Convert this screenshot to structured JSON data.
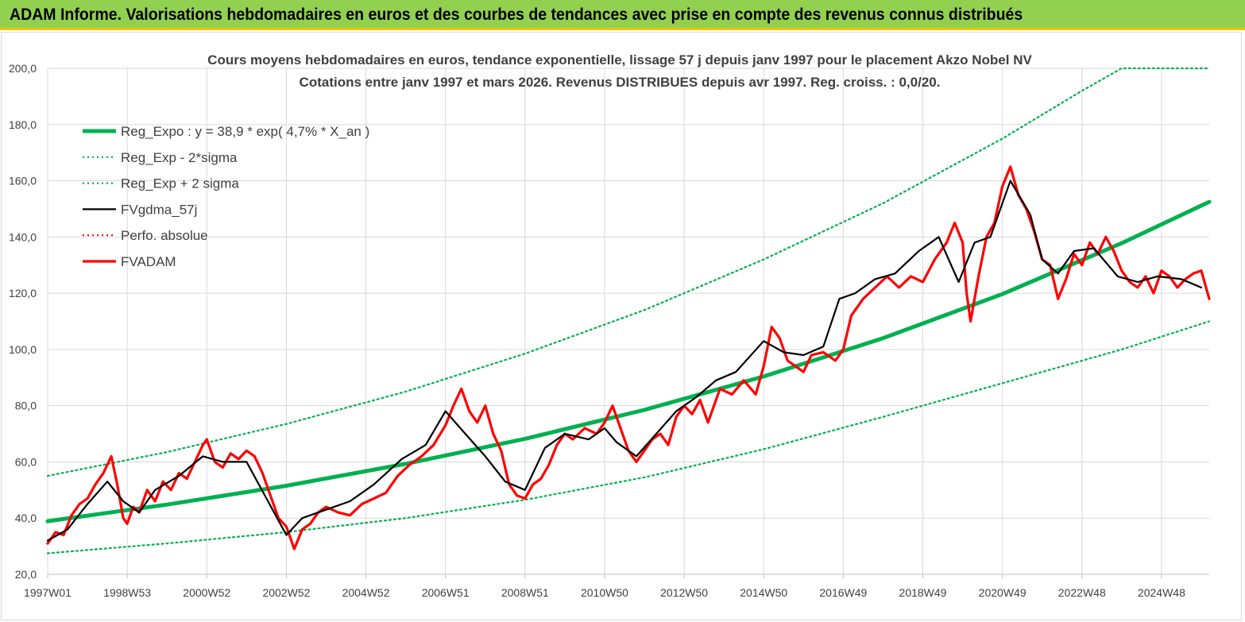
{
  "header": {
    "title": "ADAM Informe. Valorisations hebdomadaires en euros et des courbes de tendances avec prise en compte des revenus connus distribués"
  },
  "chart_data": {
    "type": "line",
    "title": "Cours moyens hebdomadaires en euros, tendance exponentielle, lissage 57 j depuis janv 1997 pour le placement Akzo Nobel NV",
    "subtitle": "Cotations entre janv 1997 et mars 2026. Revenus DISTRIBUES depuis avr 1997. Reg. croiss. : 0,0/20.",
    "xlabel": "",
    "ylabel": "",
    "x_range": [
      1997.0,
      2026.2
    ],
    "ylim": [
      20,
      200
    ],
    "y_ticks": [
      "20,0",
      "40,0",
      "60,0",
      "80,0",
      "100,0",
      "120,0",
      "140,0",
      "160,0",
      "180,0",
      "200,0"
    ],
    "x_ticks": [
      {
        "label": "1997W01",
        "t": 1997.0
      },
      {
        "label": "1998W53",
        "t": 1999.0
      },
      {
        "label": "2000W52",
        "t": 2001.0
      },
      {
        "label": "2002W52",
        "t": 2003.0
      },
      {
        "label": "2004W52",
        "t": 2005.0
      },
      {
        "label": "2006W51",
        "t": 2007.0
      },
      {
        "label": "2008W51",
        "t": 2009.0
      },
      {
        "label": "2010W50",
        "t": 2011.0
      },
      {
        "label": "2012W50",
        "t": 2013.0
      },
      {
        "label": "2014W50",
        "t": 2015.0
      },
      {
        "label": "2016W49",
        "t": 2017.0
      },
      {
        "label": "2018W49",
        "t": 2019.0
      },
      {
        "label": "2020W49",
        "t": 2021.0
      },
      {
        "label": "2022W48",
        "t": 2023.0
      },
      {
        "label": "2024W48",
        "t": 2025.0
      }
    ],
    "grid": true,
    "legend_position": "top-left",
    "series": [
      {
        "name": "Reg_Expo : y = 38,9 * exp( 4,7% *  X_an )",
        "color": "#00b050",
        "style": "solid-thick",
        "role": "trend",
        "x": [
          1997.0,
          2000.0,
          2003.0,
          2006.0,
          2009.0,
          2012.0,
          2015.0,
          2018.0,
          2021.0,
          2024.0,
          2026.2
        ],
        "values": [
          38.9,
          44.8,
          51.5,
          59.3,
          68.2,
          78.5,
          90.4,
          104.0,
          119.7,
          137.8,
          152.5
        ]
      },
      {
        "name": "Reg_Exp - 2*sigma",
        "color": "#00b050",
        "style": "dotted",
        "role": "lower",
        "x": [
          1997.0,
          2000.0,
          2003.0,
          2006.0,
          2009.0,
          2012.0,
          2015.0,
          2018.0,
          2021.0,
          2024.0,
          2026.2
        ],
        "values": [
          27.5,
          31.0,
          35.0,
          40.0,
          46.5,
          54.5,
          64.5,
          76.0,
          88.0,
          100.0,
          110.0
        ]
      },
      {
        "name": "Reg_Exp + 2 sigma",
        "color": "#00b050",
        "style": "dotted",
        "role": "upper",
        "x": [
          1997.0,
          2000.0,
          2003.0,
          2006.0,
          2009.0,
          2012.0,
          2015.0,
          2018.0,
          2021.0,
          2023.0,
          2024.0,
          2026.2
        ],
        "values": [
          55.0,
          63.5,
          73.5,
          85.0,
          98.5,
          114.0,
          132.0,
          152.0,
          175.0,
          192.0,
          200.0,
          200.0
        ]
      },
      {
        "name": "FVgdma_57j",
        "color": "#000000",
        "style": "solid",
        "role": "smooth",
        "x": [
          1997.0,
          1997.5,
          1998.0,
          1998.5,
          1998.9,
          1999.3,
          1999.7,
          2000.3,
          2000.9,
          2001.4,
          2002.0,
          2002.5,
          2003.0,
          2003.4,
          2004.0,
          2004.6,
          2005.2,
          2005.9,
          2006.5,
          2007.0,
          2007.5,
          2008.0,
          2008.5,
          2009.0,
          2009.5,
          2010.0,
          2010.6,
          2011.0,
          2011.3,
          2011.8,
          2012.3,
          2012.8,
          2013.3,
          2013.8,
          2014.3,
          2015.0,
          2015.5,
          2016.0,
          2016.5,
          2016.9,
          2017.3,
          2017.8,
          2018.3,
          2018.9,
          2019.4,
          2019.9,
          2020.3,
          2020.7,
          2021.2,
          2021.7,
          2022.0,
          2022.4,
          2022.8,
          2023.3,
          2023.9,
          2024.4,
          2024.9,
          2025.5,
          2026.0
        ],
        "values": [
          32,
          36,
          45,
          53,
          46,
          42,
          50,
          55,
          62,
          60,
          60,
          47,
          34,
          40,
          43,
          46,
          52,
          61,
          66,
          78,
          70,
          62,
          53,
          50,
          65,
          70,
          68,
          72,
          67,
          62,
          70,
          78,
          83,
          89,
          92,
          103,
          99,
          98,
          101,
          118,
          120,
          125,
          127,
          135,
          140,
          124,
          138,
          140,
          160,
          148,
          132,
          127,
          135,
          136,
          126,
          124,
          126,
          125,
          122
        ]
      },
      {
        "name": "Perfo. absolue",
        "color": "#ff0000",
        "style": "dotted",
        "role": "perf",
        "x": [],
        "values": []
      },
      {
        "name": "FVADAM",
        "color": "#ff0000",
        "style": "solid-thick",
        "role": "actual",
        "x": [
          1997.0,
          1997.2,
          1997.4,
          1997.6,
          1997.8,
          1998.0,
          1998.2,
          1998.4,
          1998.6,
          1998.75,
          1998.9,
          1999.0,
          1999.15,
          1999.3,
          1999.5,
          1999.7,
          1999.9,
          2000.1,
          2000.3,
          2000.5,
          2000.7,
          2000.9,
          2001.0,
          2001.2,
          2001.4,
          2001.6,
          2001.8,
          2002.0,
          2002.2,
          2002.4,
          2002.6,
          2002.8,
          2003.0,
          2003.2,
          2003.4,
          2003.6,
          2003.8,
          2004.0,
          2004.3,
          2004.6,
          2004.9,
          2005.2,
          2005.5,
          2005.8,
          2006.1,
          2006.4,
          2006.7,
          2007.0,
          2007.2,
          2007.4,
          2007.6,
          2007.8,
          2008.0,
          2008.2,
          2008.4,
          2008.6,
          2008.8,
          2009.0,
          2009.2,
          2009.4,
          2009.6,
          2009.8,
          2010.0,
          2010.2,
          2010.5,
          2010.8,
          2011.0,
          2011.2,
          2011.4,
          2011.6,
          2011.8,
          2012.0,
          2012.2,
          2012.4,
          2012.6,
          2012.8,
          2013.0,
          2013.2,
          2013.4,
          2013.6,
          2013.9,
          2014.2,
          2014.5,
          2014.8,
          2015.0,
          2015.2,
          2015.4,
          2015.6,
          2015.8,
          2016.0,
          2016.2,
          2016.5,
          2016.8,
          2017.0,
          2017.2,
          2017.5,
          2017.8,
          2018.1,
          2018.4,
          2018.7,
          2019.0,
          2019.3,
          2019.6,
          2019.8,
          2020.0,
          2020.1,
          2020.2,
          2020.4,
          2020.6,
          2020.8,
          2021.0,
          2021.2,
          2021.4,
          2021.6,
          2021.8,
          2022.0,
          2022.2,
          2022.4,
          2022.6,
          2022.8,
          2023.0,
          2023.2,
          2023.4,
          2023.6,
          2023.8,
          2024.0,
          2024.2,
          2024.4,
          2024.6,
          2024.8,
          2025.0,
          2025.2,
          2025.4,
          2025.6,
          2025.8,
          2026.0,
          2026.2
        ],
        "values": [
          31,
          35,
          34,
          41,
          45,
          47,
          52,
          56,
          62,
          52,
          40,
          38,
          44,
          42,
          50,
          46,
          53,
          50,
          56,
          54,
          60,
          66,
          68,
          60,
          58,
          63,
          61,
          64,
          62,
          56,
          48,
          40,
          37,
          29,
          36,
          38,
          42,
          44,
          42,
          41,
          45,
          47,
          49,
          55,
          59,
          62,
          66,
          73,
          80,
          86,
          78,
          74,
          80,
          70,
          64,
          52,
          48,
          47,
          52,
          54,
          59,
          66,
          70,
          68,
          72,
          70,
          74,
          80,
          72,
          64,
          60,
          64,
          68,
          70,
          66,
          76,
          80,
          77,
          82,
          74,
          86,
          84,
          89,
          84,
          94,
          108,
          104,
          96,
          94,
          92,
          98,
          99,
          96,
          100,
          112,
          118,
          122,
          126,
          122,
          126,
          124,
          132,
          138,
          145,
          138,
          120,
          110,
          126,
          140,
          145,
          158,
          165,
          155,
          150,
          142,
          132,
          130,
          118,
          125,
          134,
          130,
          138,
          134,
          140,
          135,
          128,
          124,
          122,
          126,
          120,
          128,
          126,
          122,
          125,
          127,
          128,
          118
        ]
      }
    ]
  }
}
